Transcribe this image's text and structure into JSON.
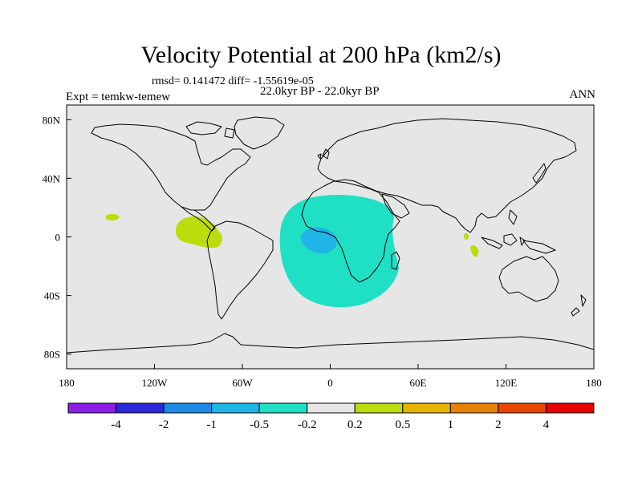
{
  "title": "Velocity Potential at 200 hPa (km2/s)",
  "stats": "rmsd= 0.141472 diff= -1.55619e-05",
  "period": "22.0kyr BP - 22.0kyr BP",
  "expt": "Expt = temkw-temew",
  "season": "ANN",
  "colors": {
    "map_background": "#e6e6e6",
    "coastline": "#000000",
    "negative_fill": "#1fe0c4",
    "strong_negative_fill": "#21b4e6",
    "positive_fill": "#bcdc0e"
  },
  "map": {
    "lon_range": [
      -180,
      180
    ],
    "lat_range": [
      -90,
      90
    ],
    "lon_ticks": [
      {
        "value": -180,
        "label": "180"
      },
      {
        "value": -120,
        "label": "120W"
      },
      {
        "value": -60,
        "label": "60W"
      },
      {
        "value": 0,
        "label": "0"
      },
      {
        "value": 60,
        "label": "60E"
      },
      {
        "value": 120,
        "label": "120E"
      },
      {
        "value": 180,
        "label": "180"
      }
    ],
    "lat_ticks": [
      {
        "value": 80,
        "label": "80N"
      },
      {
        "value": 40,
        "label": "40N"
      },
      {
        "value": 0,
        "label": "0"
      },
      {
        "value": -40,
        "label": "40S"
      },
      {
        "value": -80,
        "label": "80S"
      }
    ]
  },
  "colorbar": {
    "colors": [
      "#8a1ee6",
      "#2a2ad8",
      "#1e8ae6",
      "#1eb4e6",
      "#1fe0c4",
      "#e6e6e6",
      "#bcdc0e",
      "#e6b400",
      "#e68200",
      "#e64600",
      "#e60000"
    ],
    "labels": [
      "-4",
      "-2",
      "-1",
      "-0.5",
      "-0.2",
      "0.2",
      "0.5",
      "1",
      "2",
      "4"
    ]
  }
}
